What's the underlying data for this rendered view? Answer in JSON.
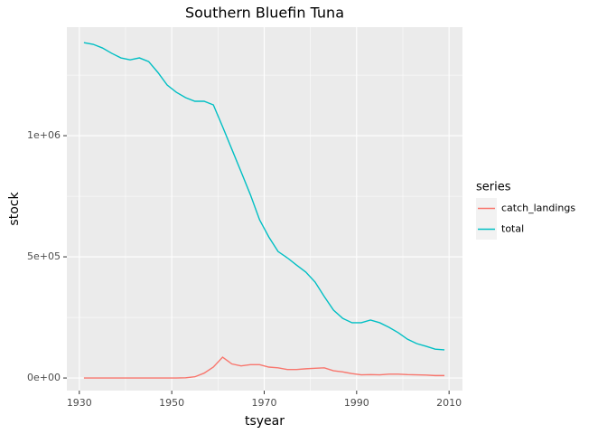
{
  "chart_data": {
    "type": "line",
    "title": "Southern Bluefin Tuna",
    "x_label": "tsyear",
    "y_label": "stock",
    "x": [
      1931,
      1933,
      1935,
      1937,
      1939,
      1941,
      1943,
      1945,
      1947,
      1949,
      1951,
      1953,
      1955,
      1957,
      1959,
      1961,
      1963,
      1965,
      1967,
      1969,
      1971,
      1973,
      1975,
      1977,
      1979,
      1981,
      1983,
      1985,
      1987,
      1989,
      1991,
      1993,
      1995,
      1997,
      1999,
      2001,
      2003,
      2005,
      2007,
      2009
    ],
    "series": [
      {
        "name": "catch_landings",
        "color": "#F8766D",
        "values": [
          0,
          0,
          0,
          0,
          0,
          0,
          0,
          0,
          0,
          0,
          0,
          1000,
          5000,
          20000,
          45000,
          86000,
          58000,
          50000,
          55000,
          55000,
          45000,
          42000,
          35000,
          35000,
          38000,
          40000,
          42000,
          30000,
          25000,
          18000,
          13000,
          14000,
          13000,
          16000,
          16000,
          14000,
          13000,
          12000,
          10000,
          10000
        ]
      },
      {
        "name": "total",
        "color": "#00BFC4",
        "values": [
          1384000,
          1377000,
          1362000,
          1340000,
          1321000,
          1313000,
          1321000,
          1306000,
          1261000,
          1209000,
          1179000,
          1157000,
          1142000,
          1142000,
          1127000,
          1037000,
          944000,
          851000,
          757000,
          653000,
          582000,
          522000,
          496000,
          466000,
          437000,
          396000,
          336000,
          280000,
          246000,
          228000,
          228000,
          239000,
          228000,
          209000,
          187000,
          160000,
          142000,
          131000,
          119000,
          116000
        ]
      }
    ],
    "legend_title": "series",
    "legend_position": "right",
    "xlim": [
      1927.3,
      2012.9
    ],
    "xticks": [
      1930,
      1950,
      1970,
      1990,
      2010
    ],
    "ylim": [
      -52000,
      1448000
    ],
    "yticks": [
      {
        "value": 0,
        "label": "0e+00"
      },
      {
        "value": 500000,
        "label": "5e+05"
      },
      {
        "value": 1000000,
        "label": "1e+06"
      }
    ],
    "grid": true
  }
}
